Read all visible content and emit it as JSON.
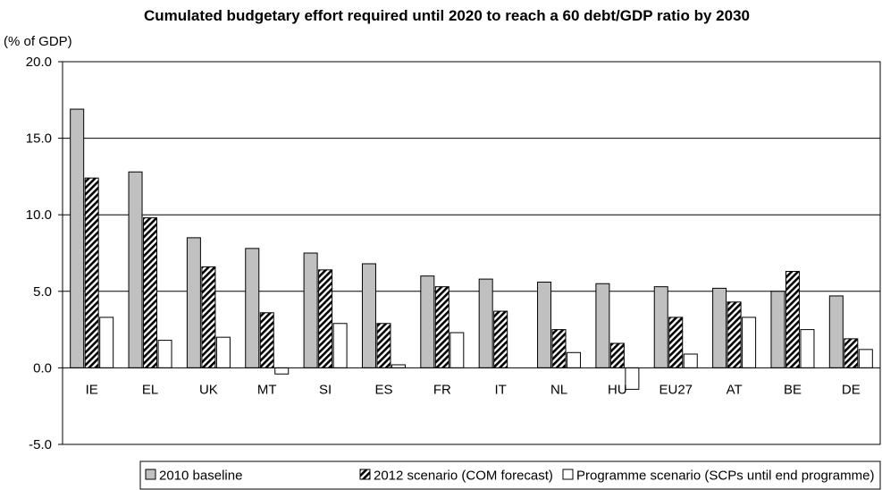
{
  "chart_data": {
    "type": "bar",
    "title": "Cumulated budgetary effort required until 2020 to reach a 60 debt/GDP ratio by 2030",
    "ylabel": "(% of GDP)",
    "xlabel": "",
    "ylim": [
      -5,
      20
    ],
    "yticks": [
      -5,
      0,
      5,
      10,
      15,
      20
    ],
    "ytick_labels": [
      "-5.0",
      "0.0",
      "5.0",
      "10.0",
      "15.0",
      "20.0"
    ],
    "grid": true,
    "legend_position": "bottom",
    "categories": [
      "IE",
      "EL",
      "UK",
      "MT",
      "SI",
      "ES",
      "FR",
      "IT",
      "NL",
      "HU",
      "EU27",
      "AT",
      "BE",
      "DE"
    ],
    "series": [
      {
        "name": "2010 baseline",
        "color": "#c0c0c0",
        "pattern": "solid",
        "values": [
          16.9,
          12.8,
          8.5,
          7.8,
          7.5,
          6.8,
          6.0,
          5.8,
          5.6,
          5.5,
          5.3,
          5.2,
          5.0,
          4.7
        ]
      },
      {
        "name": "2012 scenario (COM forecast)",
        "color": "#000000",
        "pattern": "hatch",
        "values": [
          12.4,
          9.8,
          6.6,
          3.6,
          6.4,
          2.9,
          5.3,
          3.7,
          2.5,
          1.6,
          3.3,
          4.3,
          6.3,
          1.9
        ]
      },
      {
        "name": "Programme scenario (SCPs until end programme)",
        "color": "#ffffff",
        "pattern": "solid",
        "values": [
          3.3,
          1.8,
          2.0,
          -0.4,
          2.9,
          0.2,
          2.3,
          null,
          1.0,
          -1.4,
          0.9,
          3.3,
          2.5,
          1.2
        ]
      }
    ]
  }
}
